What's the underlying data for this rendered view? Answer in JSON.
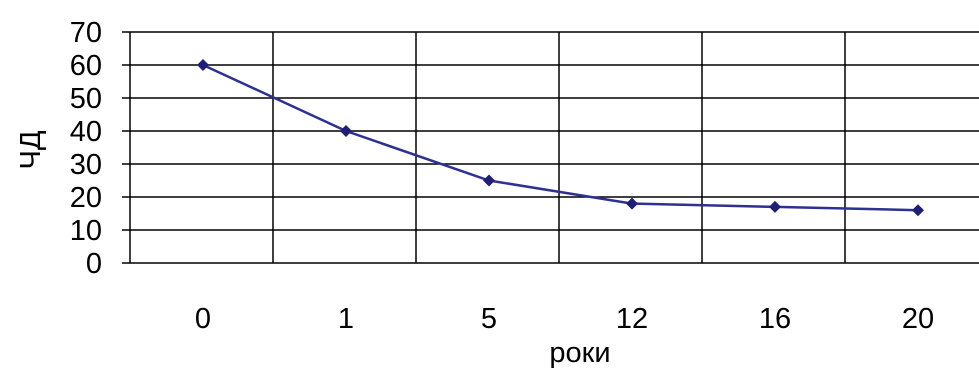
{
  "chart_data": {
    "type": "line",
    "title": "",
    "xlabel": "роки",
    "ylabel": "ЧД",
    "categories": [
      "0",
      "1",
      "5",
      "12",
      "16",
      "20"
    ],
    "series": [
      {
        "values": [
          60,
          40,
          25,
          18,
          17,
          16
        ]
      }
    ],
    "ylim": [
      0,
      70
    ],
    "yticks": [
      0,
      10,
      20,
      30,
      40,
      50,
      60,
      70
    ],
    "grid": true,
    "legend": "none",
    "colors": {
      "line": "#2e3192",
      "marker": "#1f1f7a",
      "grid": "#000000"
    }
  }
}
